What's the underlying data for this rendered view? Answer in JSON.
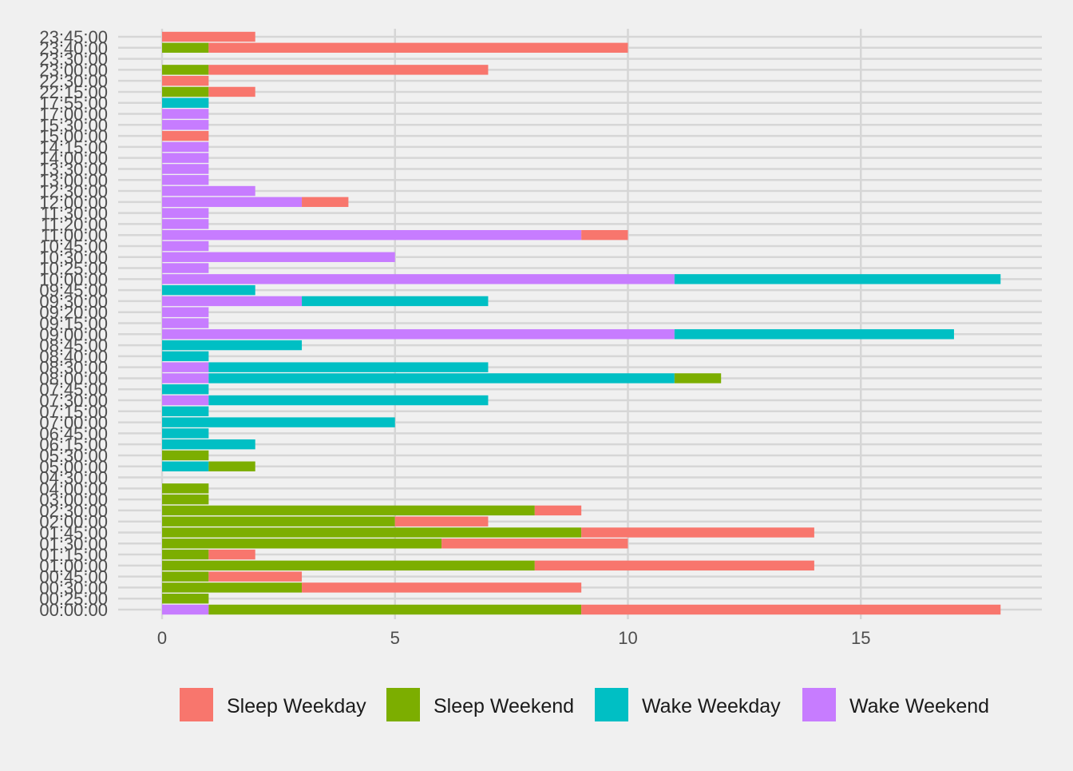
{
  "chart_data": {
    "type": "bar",
    "orientation": "horizontal",
    "stacked": true,
    "title": "",
    "xlabel": "",
    "ylabel": "",
    "xlim": [
      0,
      19
    ],
    "x_ticks": [
      "0",
      "5",
      "10",
      "15"
    ],
    "x_tick_values": [
      0,
      5,
      10,
      15
    ],
    "grid": true,
    "legend_position": "bottom",
    "categories": [
      "00:00:00",
      "00:25:00",
      "00:30:00",
      "00:45:00",
      "01:00:00",
      "01:15:00",
      "01:30:00",
      "01:45:00",
      "02:00:00",
      "02:30:00",
      "03:00:00",
      "04:00:00",
      "04:30:00",
      "05:00:00",
      "05:30:00",
      "06:15:00",
      "06:45:00",
      "07:00:00",
      "07:15:00",
      "07:30:00",
      "07:45:00",
      "08:00:00",
      "08:30:00",
      "08:40:00",
      "08:45:00",
      "09:00:00",
      "09:15:00",
      "09:20:00",
      "09:30:00",
      "09:45:00",
      "10:00:00",
      "10:25:00",
      "10:30:00",
      "10:45:00",
      "11:00:00",
      "11:20:00",
      "11:30:00",
      "12:00:00",
      "12:30:00",
      "13:00:00",
      "13:30:00",
      "14:00:00",
      "14:15:00",
      "15:00:00",
      "15:30:00",
      "17:00:00",
      "17:55:00",
      "22:15:00",
      "22:30:00",
      "23:00:00",
      "23:30:00",
      "23:40:00",
      "23:45:00"
    ],
    "series": [
      {
        "name": "Wake Weekend",
        "color": "#C77CFF",
        "values": [
          1,
          0,
          0,
          0,
          0,
          0,
          0,
          0,
          0,
          0,
          0,
          0,
          0,
          0,
          0,
          0,
          0,
          0,
          0,
          1,
          0,
          1,
          1,
          0,
          0,
          11,
          1,
          1,
          3,
          0,
          11,
          1,
          5,
          1,
          9,
          1,
          1,
          3,
          2,
          1,
          1,
          1,
          1,
          0,
          1,
          1,
          0,
          0,
          0,
          0,
          0,
          0,
          0
        ]
      },
      {
        "name": "Wake Weekday",
        "color": "#00BFC4",
        "values": [
          0,
          0,
          0,
          0,
          0,
          0,
          0,
          0,
          0,
          0,
          0,
          0,
          0,
          1,
          0,
          2,
          1,
          5,
          1,
          6,
          1,
          10,
          6,
          1,
          3,
          6,
          0,
          0,
          4,
          2,
          7,
          0,
          0,
          0,
          0,
          0,
          0,
          0,
          0,
          0,
          0,
          0,
          0,
          0,
          0,
          0,
          1,
          0,
          0,
          0,
          0,
          0,
          0
        ]
      },
      {
        "name": "Sleep Weekend",
        "color": "#7CAE00",
        "values": [
          8,
          1,
          3,
          1,
          8,
          1,
          6,
          9,
          5,
          8,
          1,
          1,
          0,
          1,
          1,
          0,
          0,
          0,
          0,
          0,
          0,
          1,
          0,
          0,
          0,
          0,
          0,
          0,
          0,
          0,
          0,
          0,
          0,
          0,
          0,
          0,
          0,
          0,
          0,
          0,
          0,
          0,
          0,
          0,
          0,
          0,
          0,
          1,
          0,
          1,
          0,
          1,
          0
        ]
      },
      {
        "name": "Sleep Weekday",
        "color": "#F8766D",
        "values": [
          9,
          0,
          6,
          2,
          6,
          1,
          4,
          5,
          2,
          1,
          0,
          0,
          0,
          0,
          0,
          0,
          0,
          0,
          0,
          0,
          0,
          0,
          0,
          0,
          0,
          0,
          0,
          0,
          0,
          0,
          0,
          0,
          0,
          0,
          1,
          0,
          0,
          1,
          0,
          0,
          0,
          0,
          0,
          1,
          0,
          0,
          0,
          1,
          1,
          6,
          0,
          9,
          2
        ]
      }
    ],
    "legend": [
      {
        "label": "Sleep Weekday",
        "color": "#F8766D"
      },
      {
        "label": "Sleep Weekend",
        "color": "#7CAE00"
      },
      {
        "label": "Wake Weekday",
        "color": "#00BFC4"
      },
      {
        "label": "Wake Weekend",
        "color": "#C77CFF"
      }
    ]
  }
}
